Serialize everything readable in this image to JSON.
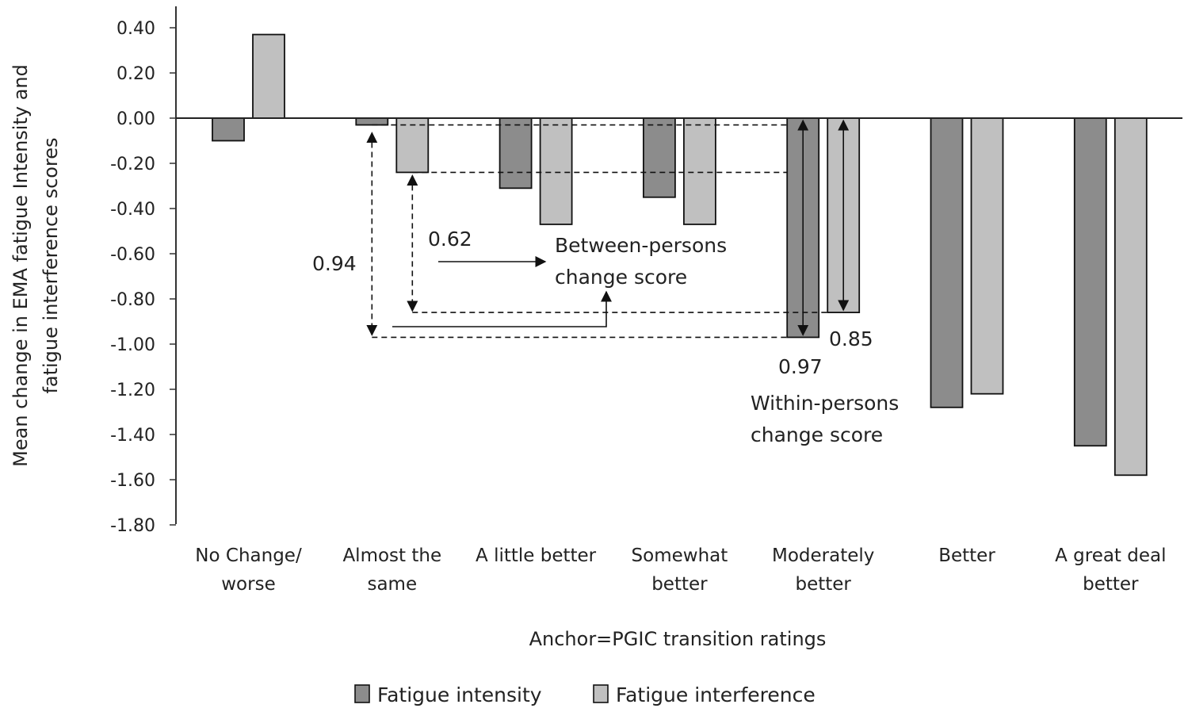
{
  "chart_data": {
    "type": "bar",
    "title": "",
    "xlabel": "Anchor=PGIC transition ratings",
    "ylabel_lines": [
      "Mean change in EMA fatigue Intensity and",
      "fatigue interference scores"
    ],
    "ylim": [
      -1.8,
      0.4
    ],
    "yticks": [
      "0.40",
      "0.20",
      "0.00",
      "-0.20",
      "-0.40",
      "-0.60",
      "-0.80",
      "-1.00",
      "-1.20",
      "-1.40",
      "-1.60",
      "-1.80"
    ],
    "ytick_values": [
      0.4,
      0.2,
      0.0,
      -0.2,
      -0.4,
      -0.6,
      -0.8,
      -1.0,
      -1.2,
      -1.4,
      -1.6,
      -1.8
    ],
    "categories": [
      [
        "No Change/",
        "worse"
      ],
      [
        "Almost the",
        "same"
      ],
      [
        "A little better"
      ],
      [
        "Somewhat",
        "better"
      ],
      [
        "Moderately",
        "better"
      ],
      [
        "Better"
      ],
      [
        "A great deal",
        "better"
      ]
    ],
    "series": [
      {
        "name": "Fatigue  intensity",
        "color": "#8c8c8c",
        "values": [
          -0.1,
          -0.03,
          -0.31,
          -0.35,
          -0.97,
          -1.28,
          -1.45
        ]
      },
      {
        "name": "Fatigue  interference",
        "color": "#c0c0c0",
        "values": [
          0.37,
          -0.24,
          -0.47,
          -0.47,
          -0.86,
          -1.22,
          -1.58
        ]
      }
    ],
    "legend_position": "bottom",
    "grid": false,
    "annotations": {
      "between_intensity_value": "0.94",
      "between_interference_value": "0.62",
      "between_label_lines": [
        "Between-persons",
        "change score"
      ],
      "within_intensity_value": "0.97",
      "within_interference_value": "0.85",
      "within_label_lines": [
        "Within-persons",
        "change score"
      ]
    }
  }
}
